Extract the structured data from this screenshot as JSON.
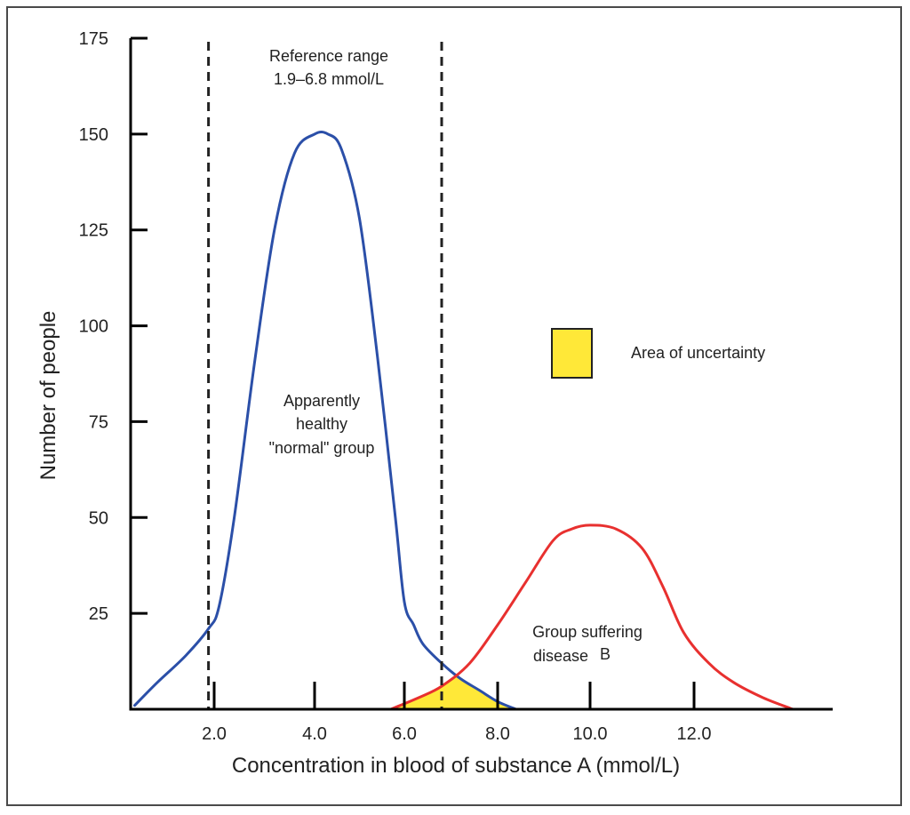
{
  "chart_data": {
    "type": "line",
    "title": "",
    "xlabel": "Concentration in blood of substance A (mmol/L)",
    "ylabel": "Number of people",
    "x_ticks": [
      2.0,
      4.0,
      6.0,
      8.0,
      10.0,
      12.0
    ],
    "x_tick_labels": [
      "2.0",
      "4.0",
      "6.0",
      "8.0",
      "10.0",
      "12.0"
    ],
    "y_ticks": [
      25,
      50,
      75,
      100,
      125,
      150,
      175
    ],
    "y_tick_labels": [
      "25",
      "50",
      "75",
      "100",
      "125",
      "150",
      "175"
    ],
    "ylim": [
      0,
      175
    ],
    "xlim": [
      0.2,
      15.4
    ],
    "grid": false,
    "series": [
      {
        "name": "Apparently healthy \"normal\" group",
        "color": "#2b4fa8",
        "x": [
          0.6,
          1.0,
          1.5,
          1.9,
          2.1,
          2.4,
          2.8,
          3.2,
          3.6,
          4.0,
          4.3,
          4.6,
          5.0,
          5.4,
          5.8,
          6.0,
          6.2,
          6.4,
          6.8,
          7.2,
          7.6,
          8.0,
          8.4
        ],
        "y": [
          1,
          7,
          14,
          21,
          27,
          50,
          90,
          125,
          145,
          150,
          150,
          146,
          128,
          92,
          50,
          28,
          22,
          17,
          12,
          8,
          5,
          2,
          0
        ]
      },
      {
        "name": "Group suffering disease B",
        "color": "#e8302f",
        "x": [
          5.7,
          6.3,
          6.8,
          7.4,
          8.0,
          8.6,
          9.2,
          9.6,
          10.0,
          10.5,
          11.0,
          11.4,
          11.8,
          12.3,
          12.8,
          13.4,
          14.0
        ],
        "y": [
          0,
          3,
          6,
          12,
          22,
          33,
          44,
          47,
          48,
          47,
          42,
          32,
          20,
          12,
          7,
          3,
          0
        ]
      }
    ],
    "shaded_region": {
      "name": "Area of uncertainty",
      "color": "#ffe838",
      "description": "Overlap between the two distributions"
    },
    "reference_lines": [
      {
        "x": 1.9,
        "style": "dashed",
        "color": "#222222"
      },
      {
        "x": 6.8,
        "style": "dashed",
        "color": "#222222"
      }
    ],
    "annotations": {
      "reference_range_line1": "Reference range",
      "reference_range_line2": "1.9–6.8 mmol/L",
      "healthy_line1": "Apparently",
      "healthy_line2": "healthy",
      "healthy_line3": "\"normal\" group",
      "disease_line1": "Group suffering",
      "disease_line2": "disease",
      "disease_line2_letter": "B"
    },
    "legend": {
      "placement": "right",
      "entries": [
        {
          "label": "Area of uncertainty",
          "color": "#ffe838"
        }
      ]
    }
  }
}
